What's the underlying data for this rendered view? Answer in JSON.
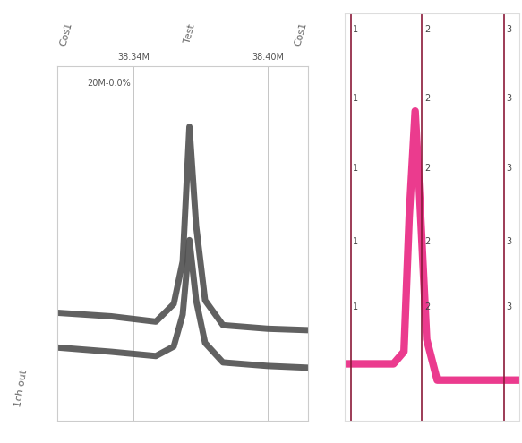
{
  "chart_data": [
    {
      "type": "line",
      "title": "20M-0.0%",
      "annotations": [
        {
          "text": "Cos1",
          "x": 38.31
        },
        {
          "text": "Test",
          "x": 38.365
        },
        {
          "text": "Cos1",
          "x": 38.415
        },
        {
          "text": "1ch out"
        }
      ],
      "x": [
        38.306,
        38.33,
        38.35,
        38.358,
        38.362,
        38.365,
        38.368,
        38.372,
        38.38,
        38.4,
        38.418
      ],
      "series": [
        {
          "color": "#505050",
          "line_style": "solid",
          "values": [
            30.5,
            29.5,
            28.0,
            33.0,
            45.0,
            83.0,
            55.0,
            34.0,
            27.0,
            26.0,
            25.6
          ]
        },
        {
          "color": "#505050",
          "line_style": "solid",
          "values": [
            20.7,
            19.5,
            18.3,
            21.0,
            30.0,
            51.0,
            34.0,
            22.0,
            16.5,
            15.5,
            15.0
          ]
        }
      ],
      "xlim": [
        38.306,
        38.418
      ],
      "xticks": [
        {
          "value": 38.34,
          "label": "38.34M"
        },
        {
          "value": 38.4,
          "label": "38.40M"
        }
      ],
      "ylim": [
        0,
        100
      ],
      "yticks": [],
      "tick_labels": "x",
      "grid": "x"
    },
    {
      "type": "line",
      "x": [
        0,
        15,
        28,
        34,
        37,
        40.4,
        43,
        47,
        53,
        70,
        100
      ],
      "values": [
        14,
        14,
        14,
        17,
        50,
        76,
        55,
        20,
        10,
        10,
        10
      ],
      "color": "#e8187a",
      "cursors": [
        {
          "x": 3.5,
          "label": "1"
        },
        {
          "x": 44.4,
          "label": "2"
        },
        {
          "x": 91,
          "label": "3"
        }
      ],
      "cursor_color": "#8b1a3a",
      "cursor_label_y": [
        96,
        79,
        62,
        44,
        28
      ],
      "xlim": [
        0,
        100
      ],
      "xticks": [],
      "ylim": [
        0,
        100
      ],
      "yticks": [],
      "tick_labels": false,
      "grid": false
    }
  ]
}
